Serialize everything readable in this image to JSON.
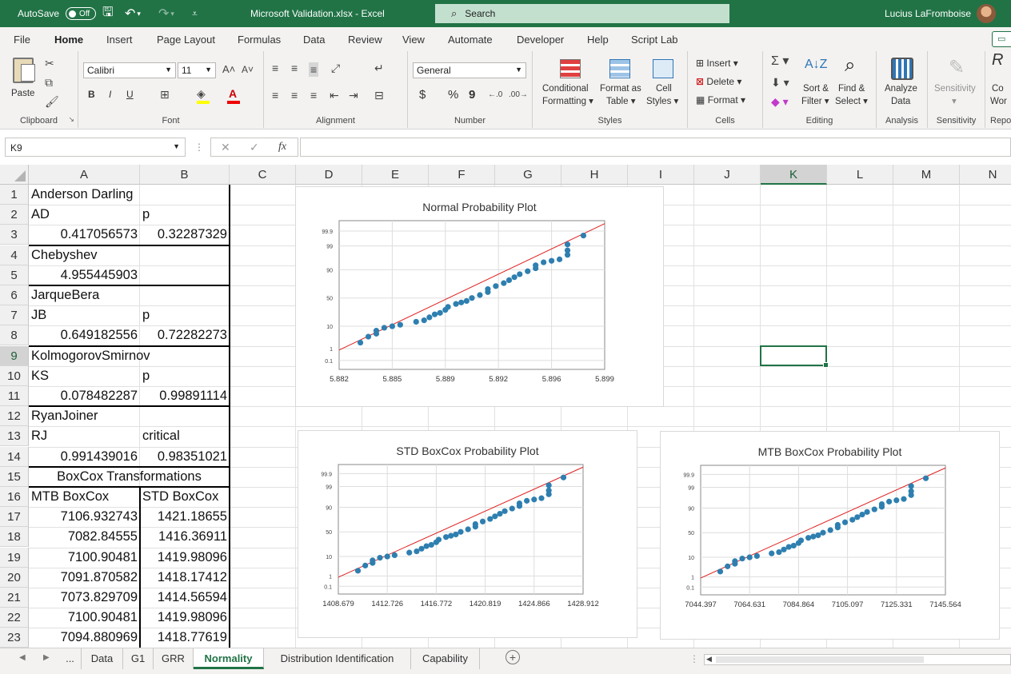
{
  "titlebar": {
    "autosave_label": "AutoSave",
    "autosave_state": "Off",
    "file_title": "Microsoft Validation.xlsx  -  Excel",
    "search_placeholder": "Search",
    "user_name": "Lucius LaFromboise"
  },
  "menu": {
    "tabs": [
      "File",
      "Home",
      "Insert",
      "Page Layout",
      "Formulas",
      "Data",
      "Review",
      "View",
      "Automate",
      "Developer",
      "Help",
      "Script Lab"
    ],
    "active": "Home"
  },
  "ribbon": {
    "clipboard": {
      "label": "Clipboard",
      "paste": "Paste"
    },
    "font": {
      "label": "Font",
      "name": "Calibri",
      "size": "11",
      "bold": "B",
      "italic": "I",
      "underline": "U"
    },
    "alignment": {
      "label": "Alignment"
    },
    "number": {
      "label": "Number",
      "format": "General",
      "currency": "$",
      "percent": "%",
      "comma": "9"
    },
    "styles": {
      "label": "Styles",
      "conditional_1": "Conditional",
      "conditional_2": "Formatting",
      "format_table_1": "Format as",
      "format_table_2": "Table",
      "cell_styles_1": "Cell",
      "cell_styles_2": "Styles"
    },
    "cells": {
      "label": "Cells",
      "insert": "Insert",
      "delete": "Delete",
      "format": "Format"
    },
    "editing": {
      "label": "Editing",
      "sort_1": "Sort &",
      "sort_2": "Filter",
      "find_1": "Find &",
      "find_2": "Select"
    },
    "analysis": {
      "label": "Analysis",
      "analyze_1": "Analyze",
      "analyze_2": "Data"
    },
    "sensitivity": {
      "label": "Sensitivity",
      "button": "Sensitivity"
    },
    "reporting": {
      "label": "Repo",
      "top": "Co",
      "mid": "Wor"
    }
  },
  "formula_bar": {
    "name_box": "K9",
    "fx": "fx",
    "cancel": "✕",
    "enter": "✓",
    "content": ""
  },
  "columns": [
    "A",
    "B",
    "C",
    "D",
    "E",
    "F",
    "G",
    "H",
    "I",
    "J",
    "K",
    "L",
    "M",
    "N"
  ],
  "selected_column": "K",
  "selected_row": 9,
  "rows": [
    {
      "n": 1,
      "a": "Anderson Darling",
      "b": ""
    },
    {
      "n": 2,
      "a": "AD",
      "b": "p"
    },
    {
      "n": 3,
      "a": "0.417056573",
      "b": "0.32287329"
    },
    {
      "n": 4,
      "a": "Chebyshev",
      "b": ""
    },
    {
      "n": 5,
      "a": "4.955445903",
      "b": ""
    },
    {
      "n": 6,
      "a": "JarqueBera",
      "b": ""
    },
    {
      "n": 7,
      "a": "JB",
      "b": "p"
    },
    {
      "n": 8,
      "a": "0.649182556",
      "b": "0.72282273"
    },
    {
      "n": 9,
      "a": "KolmogorovSmirnov",
      "b": ""
    },
    {
      "n": 10,
      "a": "KS",
      "b": "p"
    },
    {
      "n": 11,
      "a": "0.078482287",
      "b": "0.99891114"
    },
    {
      "n": 12,
      "a": "RyanJoiner",
      "b": ""
    },
    {
      "n": 13,
      "a": "RJ",
      "b": "critical"
    },
    {
      "n": 14,
      "a": "0.991439016",
      "b": "0.98351021"
    },
    {
      "n": 15,
      "a": "BoxCox Transformations",
      "b": ""
    },
    {
      "n": 16,
      "a": "MTB BoxCox",
      "b": "STD BoxCox"
    },
    {
      "n": 17,
      "a": "7106.932743",
      "b": "1421.18655"
    },
    {
      "n": 18,
      "a": "7082.84555",
      "b": "1416.36911"
    },
    {
      "n": 19,
      "a": "7100.90481",
      "b": "1419.98096"
    },
    {
      "n": 20,
      "a": "7091.870582",
      "b": "1418.17412"
    },
    {
      "n": 21,
      "a": "7073.829709",
      "b": "1414.56594"
    },
    {
      "n": 22,
      "a": "7100.90481",
      "b": "1419.98096"
    },
    {
      "n": 23,
      "a": "7094.880969",
      "b": "1418.77619"
    }
  ],
  "charts": [
    {
      "type": "scatter",
      "title": "Normal Probability Plot",
      "xticks": [
        "5.882",
        "5.885",
        "5.889",
        "5.892",
        "5.896",
        "5.899"
      ],
      "yticks": [
        "99.9",
        "99",
        "90",
        "50",
        "10",
        "1",
        "0.1"
      ],
      "points": [
        [
          0.08,
          0.82
        ],
        [
          0.11,
          0.78
        ],
        [
          0.14,
          0.76
        ],
        [
          0.14,
          0.74
        ],
        [
          0.17,
          0.72
        ],
        [
          0.2,
          0.71
        ],
        [
          0.23,
          0.7
        ],
        [
          0.29,
          0.68
        ],
        [
          0.32,
          0.67
        ],
        [
          0.34,
          0.65
        ],
        [
          0.36,
          0.63
        ],
        [
          0.38,
          0.62
        ],
        [
          0.4,
          0.6
        ],
        [
          0.41,
          0.58
        ],
        [
          0.44,
          0.56
        ],
        [
          0.46,
          0.55
        ],
        [
          0.48,
          0.54
        ],
        [
          0.5,
          0.52
        ],
        [
          0.53,
          0.5
        ],
        [
          0.56,
          0.48
        ],
        [
          0.56,
          0.46
        ],
        [
          0.59,
          0.44
        ],
        [
          0.62,
          0.42
        ],
        [
          0.64,
          0.4
        ],
        [
          0.66,
          0.38
        ],
        [
          0.68,
          0.36
        ],
        [
          0.71,
          0.34
        ],
        [
          0.74,
          0.32
        ],
        [
          0.74,
          0.3
        ],
        [
          0.77,
          0.28
        ],
        [
          0.8,
          0.27
        ],
        [
          0.83,
          0.26
        ],
        [
          0.86,
          0.23
        ],
        [
          0.86,
          0.2
        ],
        [
          0.86,
          0.16
        ],
        [
          0.92,
          0.1
        ]
      ],
      "fit_line": [
        [
          0.0,
          0.87
        ],
        [
          1.0,
          0.02
        ]
      ]
    },
    {
      "type": "scatter",
      "title": "STD BoxCox Probability Plot",
      "xticks": [
        "1408.679",
        "1412.726",
        "1416.772",
        "1420.819",
        "1424.866",
        "1428.912"
      ],
      "yticks": [
        "99.9",
        "99",
        "90",
        "50",
        "10",
        "1",
        "0.1"
      ],
      "points": [
        [
          0.08,
          0.82
        ],
        [
          0.11,
          0.78
        ],
        [
          0.14,
          0.76
        ],
        [
          0.14,
          0.74
        ],
        [
          0.17,
          0.72
        ],
        [
          0.2,
          0.71
        ],
        [
          0.23,
          0.7
        ],
        [
          0.29,
          0.68
        ],
        [
          0.32,
          0.67
        ],
        [
          0.34,
          0.65
        ],
        [
          0.36,
          0.63
        ],
        [
          0.38,
          0.62
        ],
        [
          0.4,
          0.6
        ],
        [
          0.41,
          0.58
        ],
        [
          0.44,
          0.56
        ],
        [
          0.46,
          0.55
        ],
        [
          0.48,
          0.54
        ],
        [
          0.5,
          0.52
        ],
        [
          0.53,
          0.5
        ],
        [
          0.56,
          0.48
        ],
        [
          0.56,
          0.46
        ],
        [
          0.59,
          0.44
        ],
        [
          0.62,
          0.42
        ],
        [
          0.64,
          0.4
        ],
        [
          0.66,
          0.38
        ],
        [
          0.68,
          0.36
        ],
        [
          0.71,
          0.34
        ],
        [
          0.74,
          0.32
        ],
        [
          0.74,
          0.3
        ],
        [
          0.77,
          0.28
        ],
        [
          0.8,
          0.27
        ],
        [
          0.83,
          0.26
        ],
        [
          0.86,
          0.23
        ],
        [
          0.86,
          0.2
        ],
        [
          0.86,
          0.16
        ],
        [
          0.92,
          0.1
        ]
      ],
      "fit_line": [
        [
          0.0,
          0.87
        ],
        [
          1.0,
          0.02
        ]
      ]
    },
    {
      "type": "scatter",
      "title": "MTB BoxCox Probability Plot",
      "xticks": [
        "7044.397",
        "7064.631",
        "7084.864",
        "7105.097",
        "7125.331",
        "7145.564"
      ],
      "yticks": [
        "99.9",
        "99",
        "90",
        "50",
        "10",
        "1",
        "0.1"
      ],
      "points": [
        [
          0.08,
          0.82
        ],
        [
          0.11,
          0.78
        ],
        [
          0.14,
          0.76
        ],
        [
          0.14,
          0.74
        ],
        [
          0.17,
          0.72
        ],
        [
          0.2,
          0.71
        ],
        [
          0.23,
          0.7
        ],
        [
          0.29,
          0.68
        ],
        [
          0.32,
          0.67
        ],
        [
          0.34,
          0.65
        ],
        [
          0.36,
          0.63
        ],
        [
          0.38,
          0.62
        ],
        [
          0.4,
          0.6
        ],
        [
          0.41,
          0.58
        ],
        [
          0.44,
          0.56
        ],
        [
          0.46,
          0.55
        ],
        [
          0.48,
          0.54
        ],
        [
          0.5,
          0.52
        ],
        [
          0.53,
          0.5
        ],
        [
          0.56,
          0.48
        ],
        [
          0.56,
          0.46
        ],
        [
          0.59,
          0.44
        ],
        [
          0.62,
          0.42
        ],
        [
          0.64,
          0.4
        ],
        [
          0.66,
          0.38
        ],
        [
          0.68,
          0.36
        ],
        [
          0.71,
          0.34
        ],
        [
          0.74,
          0.32
        ],
        [
          0.74,
          0.3
        ],
        [
          0.77,
          0.28
        ],
        [
          0.8,
          0.27
        ],
        [
          0.83,
          0.26
        ],
        [
          0.86,
          0.23
        ],
        [
          0.86,
          0.2
        ],
        [
          0.86,
          0.16
        ],
        [
          0.92,
          0.1
        ]
      ],
      "fit_line": [
        [
          0.0,
          0.87
        ],
        [
          1.0,
          0.02
        ]
      ]
    }
  ],
  "sheet_tabs": [
    "...",
    "Data",
    "G1",
    "GRR",
    "Normality",
    "Distribution Identification",
    "Capability"
  ],
  "active_sheet": "Normality",
  "colors": {
    "excel_green": "#217346",
    "point": "#2e7fb0",
    "fit_line": "#e02020"
  }
}
